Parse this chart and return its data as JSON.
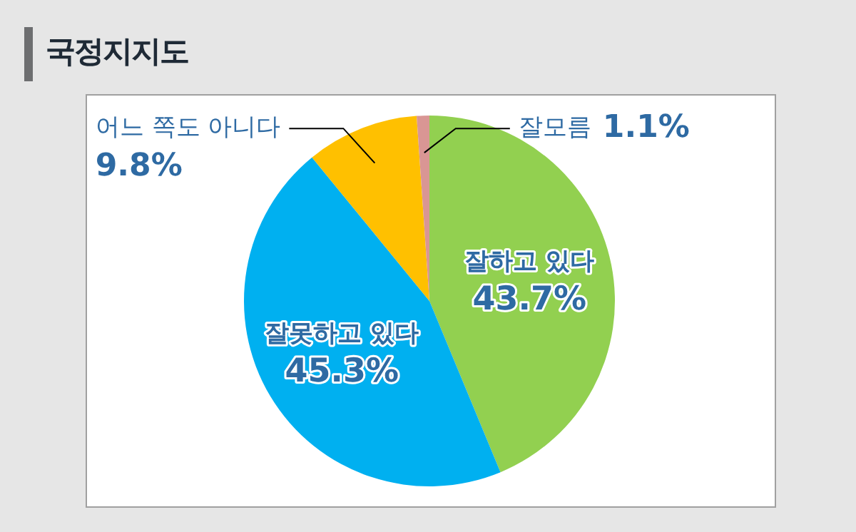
{
  "chart_data": {
    "type": "pie",
    "title": "국정지지도",
    "categories": [
      "잘하고 있다",
      "잘못하고 있다",
      "어느 쪽도 아니다",
      "잘모름"
    ],
    "values": [
      43.7,
      45.3,
      9.8,
      1.1
    ],
    "value_labels": [
      "43.7%",
      "45.3%",
      "9.8%",
      "1.1%"
    ],
    "colors": [
      "#92d050",
      "#00b0f0",
      "#ffc000",
      "#d99694"
    ],
    "legend": false
  }
}
